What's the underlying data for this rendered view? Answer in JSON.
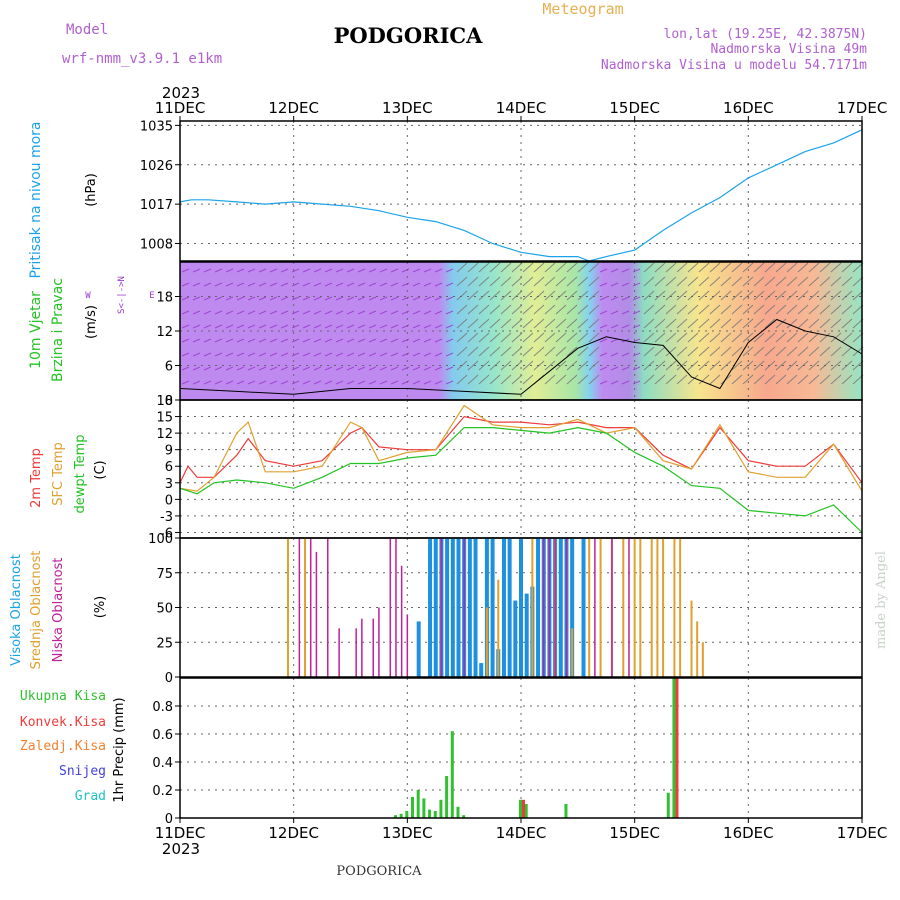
{
  "header": {
    "model_label": "Model",
    "model_name": "wrf-nmm_v3.9.1  e1km",
    "title": "PODGORICA",
    "subtitle": "Meteogram",
    "lonlat": "lon,lat (19.25E, 42.3875N)",
    "elevation": "Nadmorska Visina 49m",
    "model_elevation": "Nadmorska Visina u modelu 54.7171m"
  },
  "footer": {
    "station": "PODGORICA",
    "credit": "made by Angel"
  },
  "colors": {
    "pressure": "#1aa3e8",
    "temp2m": "#ee3b3b",
    "sfc": "#e0a030",
    "dewpt": "#22c322",
    "high_cloud": "#1e90e0",
    "mid_cloud": "#e0a030",
    "low_cloud": "#c0209a",
    "total_precip": "#30c030",
    "convective": "#ee3b3b",
    "frozen": "#f08030",
    "snow": "#4040e0",
    "graupel": "#20c0c0",
    "wind_purple": "#9a3ad0",
    "header_purple": "#b060d0",
    "header_orange": "#e6b050"
  },
  "chart_data": [
    {
      "type": "line",
      "panel": "pressure",
      "ylabel": [
        "Pritisak na nivou mora",
        "(hPa)"
      ],
      "ylim": [
        1004,
        1036
      ],
      "yticks": [
        1008,
        1017,
        1026,
        1035
      ],
      "year": "2023",
      "xticks": [
        "11DEC",
        "12DEC",
        "13DEC",
        "14DEC",
        "15DEC",
        "16DEC",
        "17DEC"
      ],
      "grid": true,
      "series": [
        {
          "x": [
            0,
            0.1,
            0.25,
            0.5,
            0.75,
            1.0,
            1.25,
            1.5,
            1.75,
            2.0,
            2.25,
            2.5,
            2.75,
            3.0,
            3.25,
            3.5,
            3.6,
            3.75,
            4.0,
            4.25,
            4.5,
            4.75,
            5.0,
            5.25,
            5.5,
            5.75,
            6.0
          ],
          "values": [
            1017.5,
            1018,
            1018,
            1017.5,
            1017,
            1017.5,
            1017,
            1016.5,
            1015.5,
            1014,
            1013,
            1011,
            1008,
            1006,
            1005,
            1005,
            1004,
            1005,
            1006.5,
            1011,
            1015,
            1018.5,
            1023,
            1026,
            1029,
            1031,
            1034
          ]
        }
      ]
    },
    {
      "type": "line",
      "panel": "wind",
      "ylabel": [
        "10m Vjetar",
        "Brzina i Pravac",
        "(m/s)"
      ],
      "compass": [
        "N",
        "<",
        "-",
        "|",
        "-",
        ">",
        "S",
        "W",
        "E"
      ],
      "ylim": [
        0,
        24
      ],
      "yticks": [
        0,
        6,
        12,
        18
      ],
      "grid": true,
      "series": [
        {
          "x": [
            0,
            0.5,
            1.0,
            1.5,
            2.0,
            2.5,
            3.0,
            3.25,
            3.5,
            3.75,
            4.0,
            4.25,
            4.5,
            4.75,
            5.0,
            5.25,
            5.5,
            5.75,
            6.0
          ],
          "values": [
            2,
            1.5,
            1,
            2,
            2,
            1.5,
            1,
            5,
            9,
            11,
            10,
            9.5,
            4,
            2,
            10,
            14,
            12,
            11,
            8
          ]
        }
      ]
    },
    {
      "type": "line",
      "panel": "temperature",
      "ylabel": [
        "2m Temp",
        "SFC Temp",
        "dewpt Temp",
        "(C)"
      ],
      "ylim": [
        -7,
        18
      ],
      "yticks": [
        -6,
        -3,
        0,
        3,
        6,
        9,
        12,
        15,
        18
      ],
      "grid": true,
      "series": [
        {
          "name": "2m Temp",
          "x": [
            0,
            0.07,
            0.15,
            0.3,
            0.5,
            0.6,
            0.75,
            1.0,
            1.25,
            1.5,
            1.6,
            1.75,
            2.0,
            2.25,
            2.5,
            2.75,
            3.0,
            3.25,
            3.5,
            3.75,
            4.0,
            4.25,
            4.5,
            4.75,
            5.0,
            5.25,
            5.5,
            5.75,
            6.0
          ],
          "values": [
            3,
            6,
            4,
            4,
            8,
            11,
            7,
            6,
            7,
            12,
            13,
            9.5,
            9,
            9,
            15,
            14,
            14,
            13.5,
            14,
            13,
            13,
            8,
            5.5,
            13,
            7,
            6,
            6,
            10,
            3
          ]
        },
        {
          "name": "SFC Temp",
          "x": [
            0,
            0.15,
            0.3,
            0.5,
            0.6,
            0.75,
            1.0,
            1.25,
            1.5,
            1.6,
            1.75,
            2.0,
            2.25,
            2.5,
            2.75,
            3.0,
            3.25,
            3.5,
            3.75,
            4.0,
            4.25,
            4.5,
            4.75,
            5.0,
            5.25,
            5.5,
            5.75,
            6.0
          ],
          "values": [
            2,
            1.5,
            4,
            12,
            14,
            5,
            5,
            6,
            14,
            13,
            7,
            8.5,
            9,
            17,
            13.5,
            13,
            13,
            14.5,
            12,
            13,
            7,
            5.5,
            13.5,
            5,
            4,
            4,
            10,
            1.5
          ]
        },
        {
          "name": "dewpt Temp",
          "x": [
            0,
            0.15,
            0.3,
            0.5,
            0.75,
            1.0,
            1.25,
            1.5,
            1.75,
            2.0,
            2.25,
            2.5,
            2.75,
            3.0,
            3.25,
            3.5,
            3.75,
            4.0,
            4.25,
            4.5,
            4.75,
            5.0,
            5.25,
            5.5,
            5.75,
            6.0
          ],
          "values": [
            2,
            1,
            3,
            3.5,
            3,
            2,
            4,
            6.5,
            6.5,
            7.5,
            8,
            13,
            13,
            12.5,
            12,
            13,
            12,
            8.5,
            6,
            2.5,
            2,
            -2,
            -2.5,
            -3,
            -1,
            -6
          ]
        }
      ]
    },
    {
      "type": "bar",
      "panel": "cloud",
      "ylabel": [
        "Visoka Oblacnost",
        "Srednja Oblacnost",
        "Niska Oblacnost",
        "(%)"
      ],
      "ylim": [
        0,
        100
      ],
      "yticks": [
        0,
        25,
        50,
        75,
        100
      ],
      "grid": true,
      "series": [
        {
          "name": "Visoka Oblacnost",
          "x": [
            2.1,
            2.2,
            2.25,
            2.3,
            2.35,
            2.4,
            2.45,
            2.5,
            2.55,
            2.6,
            2.65,
            2.7,
            2.75,
            2.8,
            2.85,
            2.9,
            2.95,
            3.0,
            3.05,
            3.1,
            3.15,
            3.2,
            3.25,
            3.3,
            3.35,
            3.4,
            3.45,
            3.55
          ],
          "values": [
            40,
            100,
            100,
            100,
            100,
            100,
            100,
            100,
            100,
            100,
            10,
            100,
            100,
            20,
            100,
            100,
            55,
            100,
            60,
            65,
            100,
            100,
            100,
            100,
            100,
            100,
            100,
            100
          ]
        },
        {
          "name": "Srednja Oblacnost",
          "x": [
            0.95,
            1.1,
            2.7,
            2.8,
            3.1,
            3.3,
            3.45,
            3.6,
            3.7,
            3.8,
            3.9,
            4.0,
            4.05,
            4.15,
            4.2,
            4.25,
            4.35,
            4.4,
            4.5,
            4.55,
            4.6
          ],
          "values": [
            100,
            100,
            50,
            70,
            100,
            100,
            35,
            100,
            100,
            100,
            100,
            100,
            100,
            100,
            100,
            100,
            100,
            100,
            55,
            40,
            25
          ]
        },
        {
          "name": "Niska Oblacnost",
          "x": [
            1.05,
            1.15,
            1.2,
            1.3,
            1.4,
            1.55,
            1.6,
            1.7,
            1.75,
            1.85,
            1.9,
            1.95,
            2.0,
            2.3,
            2.5,
            3.2,
            3.25,
            3.3,
            3.4,
            3.65,
            3.8,
            3.95
          ],
          "values": [
            100,
            100,
            90,
            100,
            35,
            35,
            42,
            42,
            50,
            100,
            100,
            80,
            45,
            100,
            100,
            100,
            100,
            100,
            100,
            100,
            100,
            100
          ]
        }
      ]
    },
    {
      "type": "bar",
      "panel": "precipitation",
      "ylabel": [
        "1hr Precip (mm)"
      ],
      "legend": [
        "Ukupna Kisa",
        "Konvek.Kisa",
        "Zaledj.Kisa",
        "Snijeg",
        "Grad"
      ],
      "ylim": [
        0,
        1.0
      ],
      "yticks": [
        0,
        0.2,
        0.4,
        0.6,
        0.8
      ],
      "grid": true,
      "series": [
        {
          "name": "Ukupna Kisa",
          "x": [
            1.9,
            1.95,
            2.0,
            2.05,
            2.1,
            2.15,
            2.2,
            2.25,
            2.3,
            2.35,
            2.4,
            2.45,
            2.5,
            3.0,
            3.05,
            3.4,
            4.3,
            4.35
          ],
          "values": [
            0.02,
            0.03,
            0.05,
            0.15,
            0.2,
            0.14,
            0.06,
            0.05,
            0.13,
            0.3,
            0.62,
            0.08,
            0.02,
            0.13,
            0.1,
            0.1,
            0.18,
            1.0
          ]
        },
        {
          "name": "Konvek.Kisa",
          "x": [
            3.0,
            4.35
          ],
          "values": [
            0.13,
            1.0
          ]
        }
      ]
    }
  ]
}
